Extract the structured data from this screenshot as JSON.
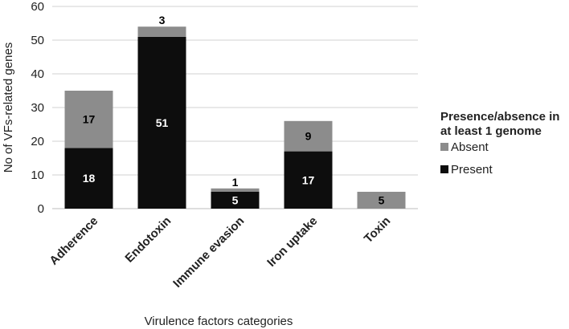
{
  "chart_data": {
    "type": "bar",
    "stacked": true,
    "categories": [
      "Adherence",
      "Endotoxin",
      "Immune evasion",
      "Iron uptake",
      "Toxin"
    ],
    "series": [
      {
        "name": "Present",
        "color": "#0d0d0d",
        "label_color": "#ffffff",
        "values": [
          18,
          51,
          5,
          17,
          0
        ]
      },
      {
        "name": "Absent",
        "color": "#8c8c8c",
        "label_color": "#000000",
        "values": [
          17,
          3,
          1,
          9,
          5
        ]
      }
    ],
    "xlabel": "Virulence factors categories",
    "ylabel": "No of VFs-related genes",
    "ylim": [
      0,
      60
    ],
    "yticks": [
      0,
      10,
      20,
      30,
      40,
      50,
      60
    ],
    "grid": true,
    "legend": {
      "title_lines": [
        "Presence/absence in",
        "at least 1 genome"
      ],
      "order": [
        "Absent",
        "Present"
      ],
      "placement": "right"
    }
  }
}
